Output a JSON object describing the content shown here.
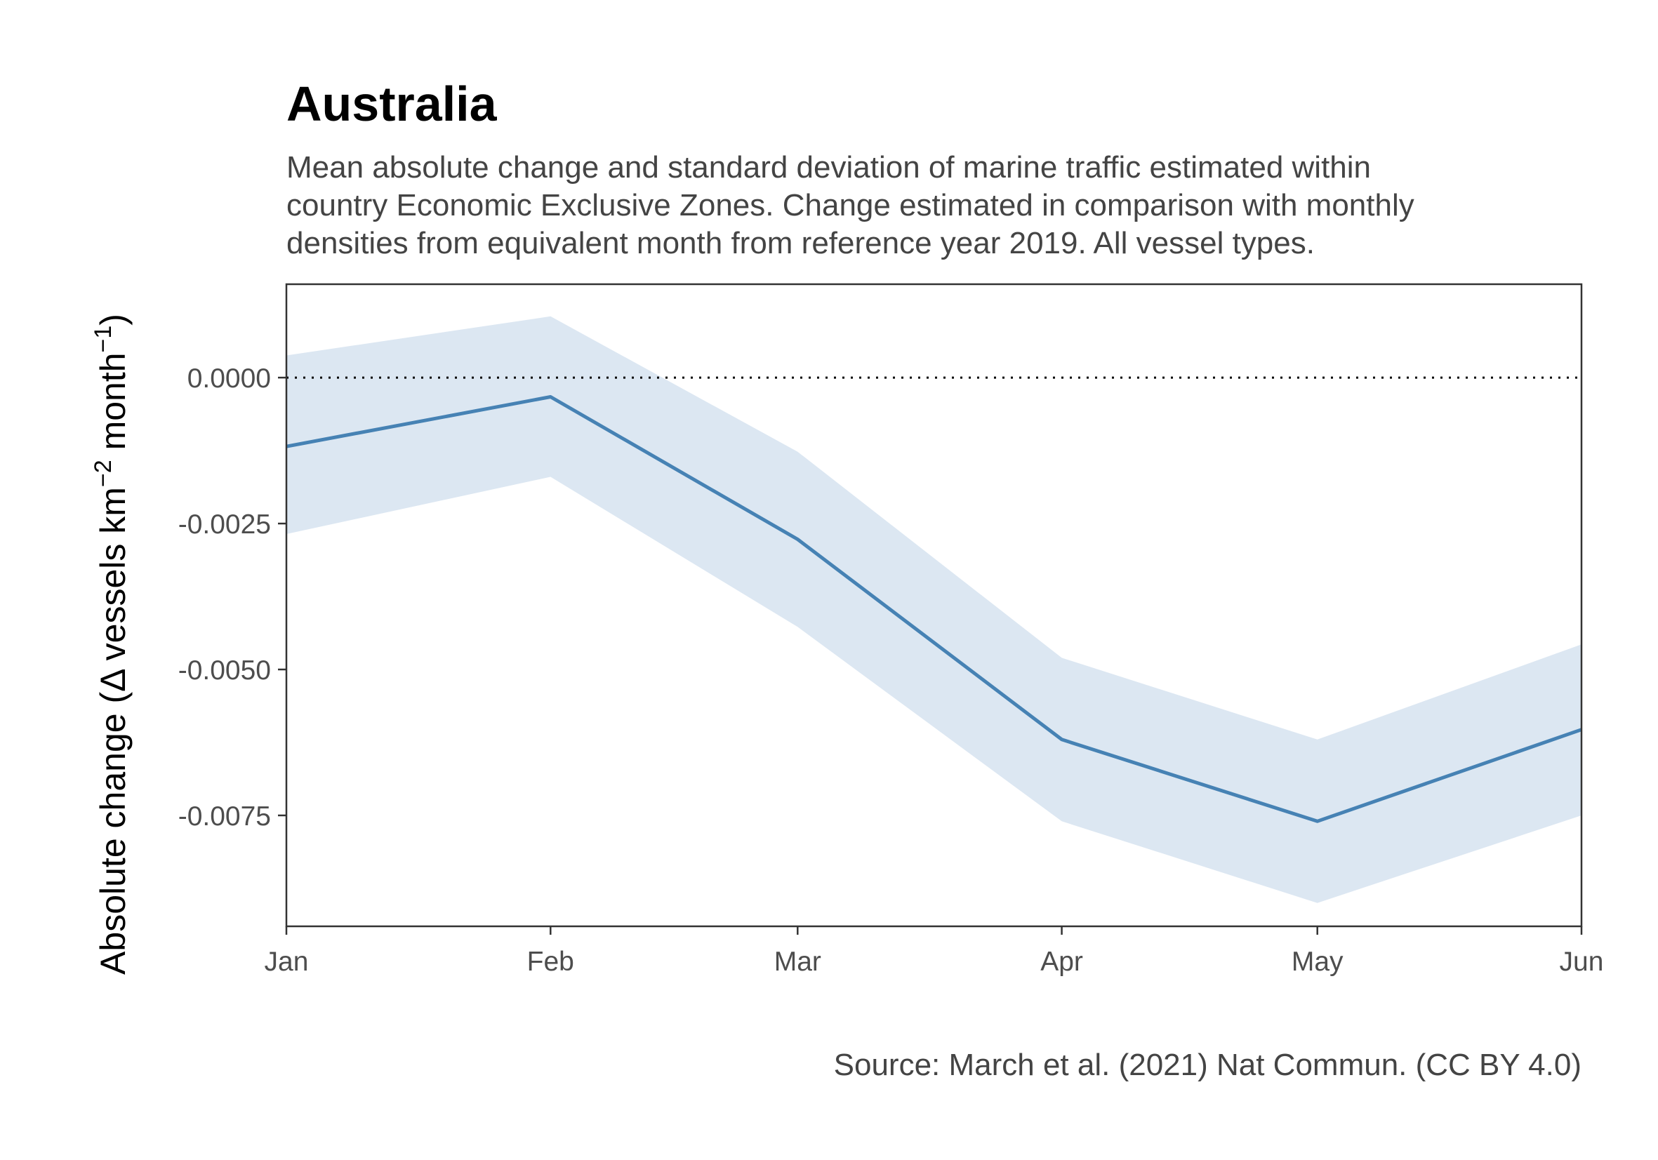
{
  "chart_data": {
    "type": "line",
    "title": "Australia",
    "subtitle_lines": [
      "Mean absolute change and standard deviation of marine traffic estimated within",
      "country Economic Exclusive Zones. Change estimated in comparison with monthly",
      "densities from equivalent month from reference year 2019. All vessel types."
    ],
    "ylabel": {
      "prefix": "Absolute change (",
      "delta": "Δ",
      "text1": " vessels km",
      "sup1": "−2",
      "text2": " month",
      "sup2": "−1",
      "suffix": ")"
    },
    "caption": "Source: March et al. (2021) Nat Commun. (CC BY 4.0)",
    "categories": [
      "Jan",
      "Feb",
      "Mar",
      "Apr",
      "May",
      "Jun"
    ],
    "x_days": [
      0,
      31,
      60,
      91,
      121,
      152
    ],
    "series": [
      {
        "values": [
          -0.00118,
          -0.00033,
          -0.00277,
          -0.0062,
          -0.0076,
          -0.00603
        ],
        "upper": [
          0.00038,
          0.00105,
          -0.00127,
          -0.0048,
          -0.0062,
          -0.00457
        ],
        "lower": [
          -0.00268,
          -0.0017,
          -0.00427,
          -0.0076,
          -0.009,
          -0.0075
        ]
      }
    ],
    "yticks": [
      0,
      -0.0025,
      -0.005,
      -0.0075
    ],
    "ytick_labels": [
      "0.0000",
      "-0.0025",
      "-0.0050",
      "-0.0075"
    ],
    "ylim": [
      -0.0094,
      0.0016
    ],
    "reference_line": 0,
    "grid": false,
    "colors": {
      "line": "#4682b4",
      "ribbon": "#dce7f2",
      "axis": "#333333",
      "reference": "#000000"
    }
  }
}
